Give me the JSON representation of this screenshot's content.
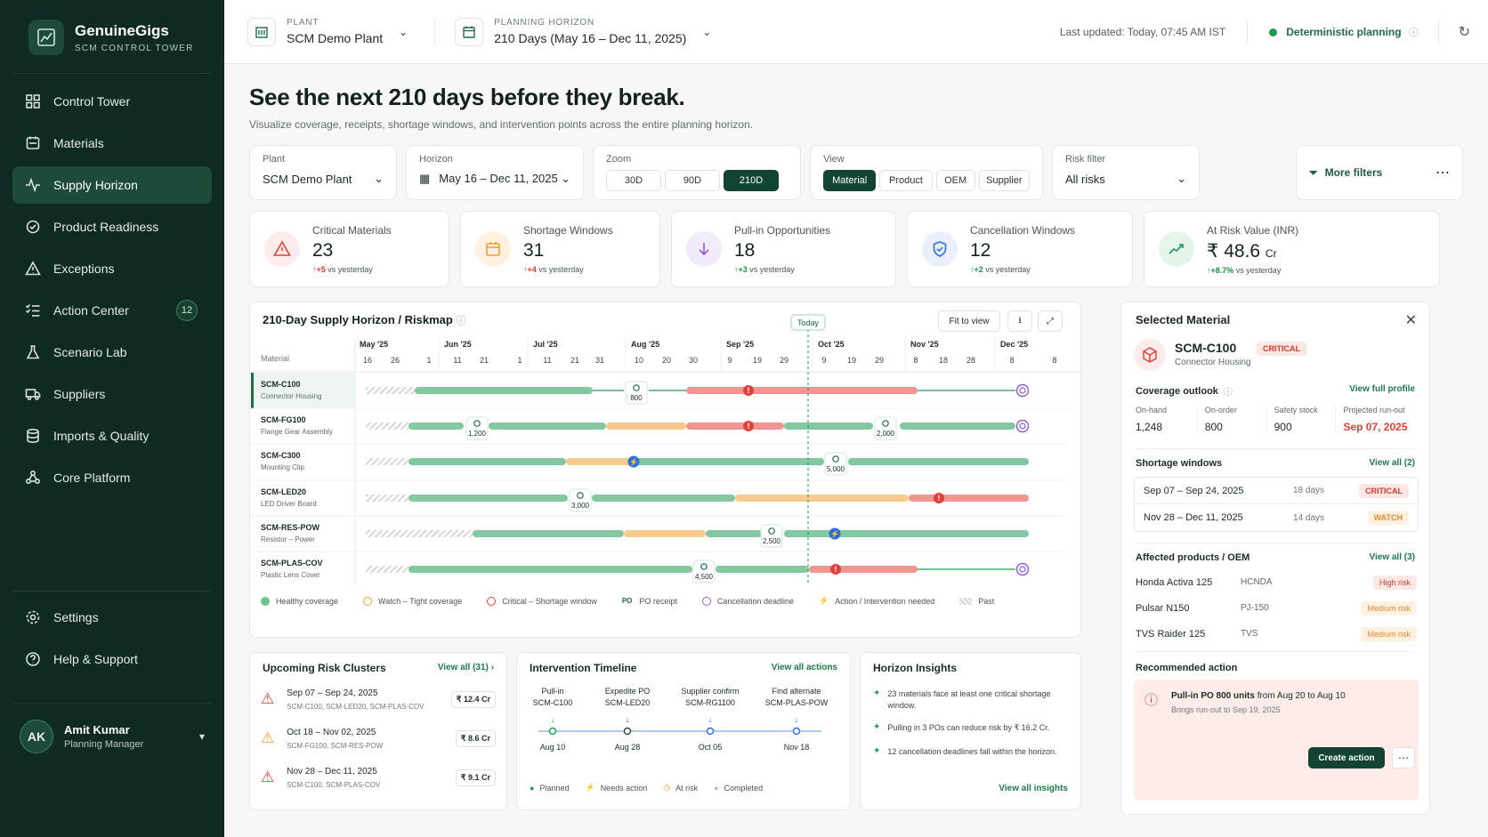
{
  "brand": {
    "title": "GenuineGigs",
    "subtitle": "SCM CONTROL TOWER"
  },
  "nav": [
    {
      "label": "Control Tower",
      "icon": "grid-icon"
    },
    {
      "label": "Materials",
      "icon": "cube-icon"
    },
    {
      "label": "Supply Horizon",
      "icon": "pulse-icon",
      "active": true
    },
    {
      "label": "Product Readiness",
      "icon": "box-icon"
    },
    {
      "label": "Exceptions",
      "icon": "warning-icon"
    },
    {
      "label": "Action Center",
      "icon": "checklist-icon",
      "badge": "12"
    },
    {
      "label": "Scenario Lab",
      "icon": "flask-icon"
    },
    {
      "label": "Suppliers",
      "icon": "truck-icon"
    },
    {
      "label": "Imports & Quality",
      "icon": "database-icon"
    },
    {
      "label": "Core Platform",
      "icon": "nodes-icon"
    }
  ],
  "nav_bottom": [
    {
      "label": "Settings",
      "icon": "gear-icon"
    },
    {
      "label": "Help & Support",
      "icon": "help-icon"
    }
  ],
  "user": {
    "initials": "AK",
    "name": "Amit Kumar",
    "role": "Planning Manager"
  },
  "topbar": {
    "plant_label": "PLANT",
    "plant_value": "SCM Demo Plant",
    "horizon_label": "PLANNING HORIZON",
    "horizon_value": "210 Days (May 16 – Dec 11, 2025)",
    "last_updated": "Last updated: Today, 07:45 AM IST",
    "mode": "Deterministic planning"
  },
  "hero": {
    "title": "See the next 210 days before they break.",
    "subtitle": "Visualize coverage, receipts, shortage windows, and intervention points across the entire planning horizon."
  },
  "filters": {
    "plant_label": "Plant",
    "plant_value": "SCM Demo Plant",
    "horizon_label": "Horizon",
    "horizon_value": "May 16 – Dec 11, 2025",
    "zoom_label": "Zoom",
    "zoom_options": [
      "30D",
      "90D",
      "210D"
    ],
    "zoom_selected": "210D",
    "view_label": "View",
    "view_options": [
      "Material",
      "Product",
      "OEM",
      "Supplier"
    ],
    "view_selected": "Material",
    "risk_label": "Risk filter",
    "risk_value": "All risks",
    "more_filters": "More filters",
    "more": "⋯"
  },
  "kpis": [
    {
      "label": "Critical Materials",
      "value": "23",
      "delta": "↑+5",
      "delta_text": "vs yesterday",
      "tone": "red"
    },
    {
      "label": "Shortage Windows",
      "value": "31",
      "delta": "↑+4",
      "delta_text": "vs yesterday",
      "tone": "orange"
    },
    {
      "label": "Pull-in Opportunities",
      "value": "18",
      "delta": "↑+3",
      "delta_text": "vs yesterday",
      "tone": "purple"
    },
    {
      "label": "Cancellation Windows",
      "value": "12",
      "delta": "↑+2",
      "delta_text": "vs yesterday",
      "tone": "blue"
    },
    {
      "label": "At Risk Value (INR)",
      "value": "₹ 48.6",
      "unit": "Cr",
      "delta": "↑+8.7%",
      "delta_text": "vs yesterday",
      "tone": "green"
    }
  ],
  "riskmap": {
    "title": "210-Day Supply Horizon / Riskmap",
    "fit": "Fit to view",
    "today": "Today",
    "material_header": "Material",
    "months": [
      "May '25",
      "Jun '25",
      "Jul '25",
      "Aug '25",
      "Sep '25",
      "Oct '25",
      "Nov '25",
      "Dec '25"
    ],
    "days": [
      "16",
      "26",
      "1",
      "11",
      "21",
      "1",
      "11",
      "21",
      "31",
      "10",
      "20",
      "30",
      "9",
      "19",
      "29",
      "9",
      "19",
      "29",
      "8",
      "18",
      "28",
      "8",
      "8"
    ],
    "rows": [
      {
        "code": "SCM-C100",
        "name": "Connector Housing",
        "receipt": "800",
        "selected": true
      },
      {
        "code": "SCM-FG100",
        "name": "Flange Gear Assembly",
        "receipt": "1,200",
        "receipt2": "2,000"
      },
      {
        "code": "SCM-C300",
        "name": "Mounting Clip",
        "receipt": "5,000"
      },
      {
        "code": "SCM-LED20",
        "name": "LED Driver Board",
        "receipt": "3,000"
      },
      {
        "code": "SCM-RES-POW",
        "name": "Resistor – Power",
        "receipt": "2,500"
      },
      {
        "code": "SCM-PLAS-COV",
        "name": "Plastic Lens Cover",
        "receipt": "4,500"
      }
    ],
    "legend": [
      "Healthy coverage",
      "Watch – Tight coverage",
      "Critical – Shortage window",
      "PO receipt",
      "Cancellation deadline",
      "Action / Intervention needed",
      "Past"
    ],
    "legend_po": "PO"
  },
  "clusters": {
    "title": "Upcoming Risk Clusters",
    "view_all": "View all (31)",
    "items": [
      {
        "dates": "Sep 07 – Sep 24, 2025",
        "codes": "SCM-C100, SCM-LED20, SCM-PLAS-COV",
        "amount": "₹ 12.4 Cr",
        "tone": "red"
      },
      {
        "dates": "Oct 18 – Nov 02, 2025",
        "codes": "SCM-FG100, SCM-RES-POW",
        "amount": "₹ 8.6 Cr",
        "tone": "orange"
      },
      {
        "dates": "Nov 28 – Dec 11, 2025",
        "codes": "SCM-C100, SCM-PLAS-COV",
        "amount": "₹ 9.1 Cr",
        "tone": "red"
      }
    ]
  },
  "timeline": {
    "title": "Intervention Timeline",
    "view_all": "View all actions",
    "items": [
      {
        "action": "Pull-in",
        "target": "SCM-C100",
        "date": "Aug 10"
      },
      {
        "action": "Expedite PO",
        "target": "SCM-LED20",
        "date": "Aug 28"
      },
      {
        "action": "Supplier confirm",
        "target": "SCM-RG1100",
        "date": "Oct 05"
      },
      {
        "action": "Find alternate",
        "target": "SCM-PLAS-POW",
        "date": "Nov 18"
      }
    ],
    "legend": [
      "Planned",
      "Needs action",
      "At risk",
      "Completed"
    ]
  },
  "insights": {
    "title": "Horizon Insights",
    "items": [
      "23 materials face at least one critical shortage window.",
      "Pulling in 3 POs can reduce risk by ₹ 16.2 Cr.",
      "12 cancellation deadlines fall within the horizon."
    ],
    "view_all": "View all insights"
  },
  "selected": {
    "title": "Selected Material",
    "code": "SCM-C100",
    "name": "Connector Housing",
    "status": "CRITICAL",
    "coverage_title": "Coverage outlook",
    "full_profile": "View full profile",
    "stats": [
      {
        "label": "On-hand",
        "value": "1,248"
      },
      {
        "label": "On-order",
        "value": "800"
      },
      {
        "label": "Safety stock",
        "value": "900"
      },
      {
        "label": "Projected run-out",
        "value": "Sep 07, 2025"
      }
    ],
    "shortage_title": "Shortage windows",
    "shortage_view_all": "View all (2)",
    "shortages": [
      {
        "dates": "Sep 07 – Sep 24, 2025",
        "days": "18 days",
        "status": "CRITICAL"
      },
      {
        "dates": "Nov 28 – Dec 11, 2025",
        "days": "14 days",
        "status": "WATCH"
      }
    ],
    "affected_title": "Affected products / OEM",
    "affected_view_all": "View all (3)",
    "affected": [
      {
        "product": "Honda Activa 125",
        "oem": "HCNDA",
        "risk": "High risk"
      },
      {
        "product": "Pulsar N150",
        "oem": "PJ-150",
        "risk": "Medium risk"
      },
      {
        "product": "TVS Raider 125",
        "oem": "TVS",
        "risk": "Medium risk"
      }
    ],
    "recommended_title": "Recommended action",
    "rec_bold": "Pull-in PO 800 units",
    "rec_text": "from Aug 20 to Aug 10",
    "rec_sub": "Brings run-out to Sep 19, 2025",
    "create": "Create action",
    "more": "⋯"
  },
  "colors": {
    "green": "#1e9a55",
    "orange": "#f0a030",
    "red": "#e2403a",
    "blue": "#2f6fe0",
    "purple": "#8d5bd6"
  }
}
